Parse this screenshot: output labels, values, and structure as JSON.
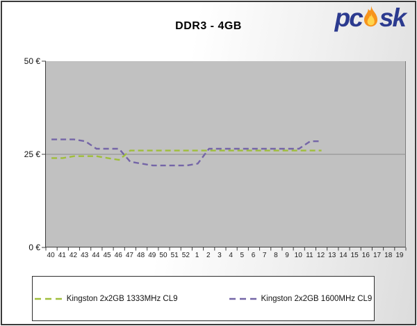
{
  "header": {
    "title": "DDR3 - 4GB",
    "logo": {
      "text_left": "pc",
      "text_right": "sk",
      "brand_color": "#2B3A8F",
      "flame_color": "#F7941D"
    }
  },
  "chart_data": {
    "type": "line",
    "title": "DDR3 - 4GB",
    "currency": "EUR",
    "x_axis": {
      "label": "",
      "tick_labels": [
        "40",
        "41",
        "42",
        "43",
        "44",
        "45",
        "46",
        "47",
        "48",
        "49",
        "50",
        "51",
        "52",
        "1",
        "2",
        "3",
        "4",
        "5",
        "6",
        "7",
        "8",
        "9",
        "10",
        "11",
        "12",
        "13",
        "14",
        "15",
        "16",
        "17",
        "18",
        "19"
      ]
    },
    "y_axis": {
      "label": "",
      "tick_labels": [
        "50 €",
        "25 €",
        "0 €"
      ],
      "min": 0,
      "max": 50,
      "gridlines": [
        25
      ]
    },
    "plot_background": "#C1C1C1",
    "gridline_color": "#8a8a8a",
    "legend_position": "bottom",
    "series": [
      {
        "name": "Kingston 2x2GB 1333MHz CL9",
        "color": "#9FBE3B",
        "line_style": "dashed",
        "x": [
          "40",
          "41",
          "42",
          "43",
          "44",
          "45",
          "46",
          "47",
          "48",
          "49",
          "50",
          "51",
          "52",
          "1",
          "2",
          "3",
          "4",
          "5",
          "6",
          "7",
          "8",
          "9",
          "10",
          "11",
          "12"
        ],
        "values": [
          24,
          24,
          24.5,
          24.5,
          24.5,
          24,
          23.5,
          26,
          26,
          26,
          26,
          26,
          26,
          26,
          26,
          26,
          26,
          26,
          26,
          26,
          26,
          26,
          26,
          26,
          26
        ]
      },
      {
        "name": "Kingston 2x2GB 1600MHz CL9",
        "color": "#7465A7",
        "line_style": "dashed",
        "x": [
          "40",
          "41",
          "42",
          "43",
          "44",
          "45",
          "46",
          "47",
          "48",
          "49",
          "50",
          "51",
          "52",
          "1",
          "2",
          "3",
          "4",
          "5",
          "6",
          "7",
          "8",
          "9",
          "10",
          "11",
          "12"
        ],
        "values": [
          29,
          29,
          29,
          28.5,
          26.5,
          26.5,
          26.5,
          23,
          22.5,
          22,
          22,
          22,
          22,
          22.5,
          26.5,
          26.5,
          26.5,
          26.5,
          26.5,
          26.5,
          26.5,
          26.5,
          26.5,
          28.5,
          28.5
        ]
      }
    ]
  },
  "legend": {
    "items": [
      {
        "label": "Kingston 2x2GB 1333MHz CL9",
        "color": "#9FBE3B"
      },
      {
        "label": "Kingston 2x2GB 1600MHz CL9",
        "color": "#7465A7"
      }
    ]
  }
}
